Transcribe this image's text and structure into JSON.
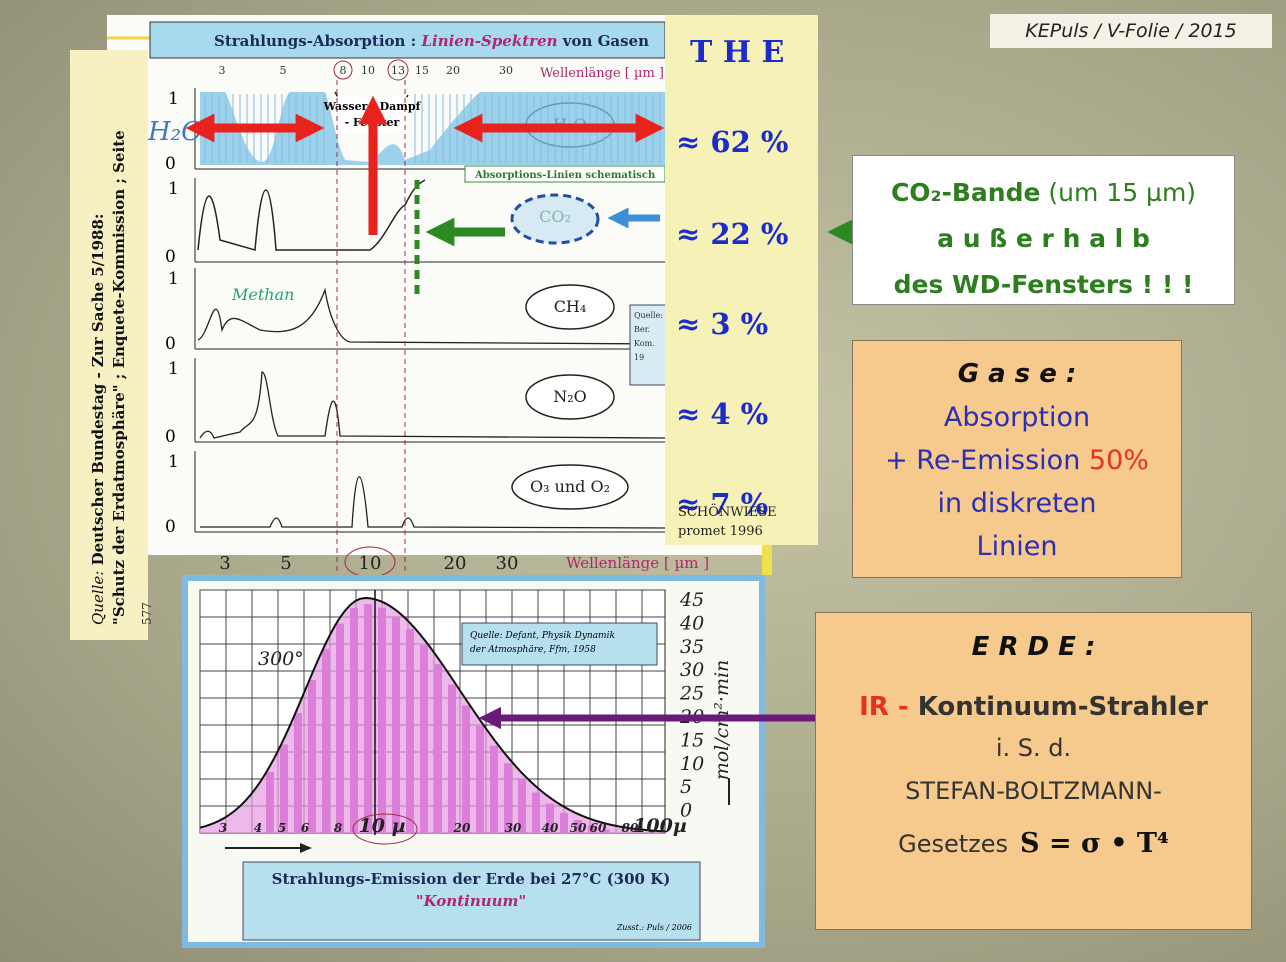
{
  "header": "KEPuls / V-Folie / 2015",
  "source_side": {
    "prefix": "Quelle:",
    "line1": " Deutscher Bundestag - Zur Sache 5/1988:",
    "line2": "\"Schutz der Erdatmosphäre\" ; Enquete-Kommission ; Seite",
    "page": "577"
  },
  "absorption": {
    "title": "Strahlungs-Absorption : ",
    "title_em": "Linien-Spektren",
    "title_end": " von Gasen",
    "wavelength_label": "Wellenlänge [ µm ]",
    "top_ticks": [
      "3",
      "5",
      "8",
      "10",
      "13",
      "15",
      "20",
      "30"
    ],
    "bottom_ticks": [
      "3",
      "5",
      "10",
      "20",
      "30"
    ],
    "axis_one": "1",
    "axis_zero": "0",
    "window_label": [
      "Wasser - Dampf",
      "- Fenster"
    ],
    "schematic_label": "Absorptions-Linien schematisch",
    "handwritten_h2o": "H₂O",
    "handwritten_methan": "Methan",
    "gases": [
      "H₂O",
      "CO₂",
      "CH₄",
      "N₂O",
      "O₃ und O₂"
    ],
    "side_note": [
      "Quelle:",
      "Ber.",
      "Kom.",
      "19"
    ]
  },
  "the": {
    "title": "T H E",
    "shares": [
      "≈ 62 %",
      "≈ 22 %",
      "≈   3 %",
      "≈   4 %",
      "≈   7 %"
    ],
    "credit": [
      "SCHÖNWIESE",
      "promet 1996"
    ]
  },
  "co2_box": {
    "bold": "CO₂-Bande",
    "rest": " (um 15 µm)",
    "line2": "a u ß e r h a l b",
    "line3": "des WD-Fensters ! ! !"
  },
  "gase_box": {
    "title": "G a s e :",
    "line1": "Absorption",
    "line2": "+ Re-Emission ",
    "line2_red": "50%",
    "line3": "in diskreten",
    "line4": "Linien"
  },
  "erde_box": {
    "title": "E R D E :",
    "line1_red": "IR - ",
    "line1": "Kontinuum-Strahler",
    "line2": "i. S. d.",
    "line3": "STEFAN-BOLTZMANN-",
    "line4": "Gesetzes",
    "formula": "S = σ • T⁴"
  },
  "emission": {
    "y_ticks": [
      "45",
      "40",
      "35",
      "30",
      "25",
      "20",
      "15",
      "10",
      "5",
      "0"
    ],
    "unit": "mol/cm²·min",
    "x_ticks": [
      "3",
      "4",
      "5",
      "6",
      "8",
      "10 µ",
      "20",
      "30",
      "40",
      "50",
      "60",
      "80",
      "100µ"
    ],
    "temperature": "300°",
    "source": [
      "Quelle: Defant, Physik Dynamik",
      "der Atmosphäre, Ffm, 1958"
    ],
    "caption": "Strahlungs-Emission der Erde bei 27°C (300 K)",
    "caption_em": "\"Kontinuum\"",
    "credit": "Zusst.: Puls / 2006"
  }
}
